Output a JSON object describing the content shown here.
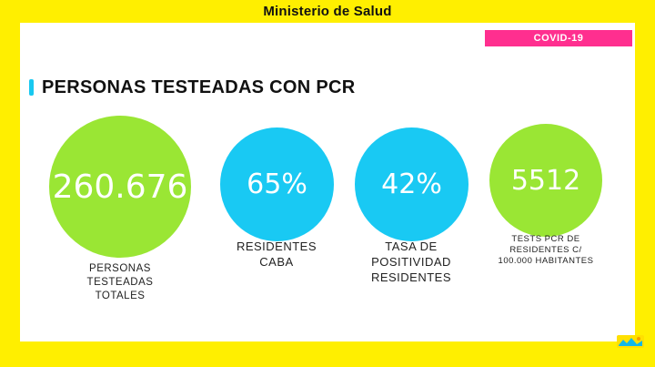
{
  "header": {
    "title": "Ministerio de Salud"
  },
  "tag": {
    "label": "COVID-19"
  },
  "section": {
    "title": "PERSONAS TESTEADAS CON PCR"
  },
  "stats": [
    {
      "value": "260.676",
      "label_lines": [
        "PERSONAS",
        "TESTEADAS",
        "TOTALES"
      ],
      "color": "#9ae634"
    },
    {
      "value": "65%",
      "label_lines": [
        "RESIDENTES",
        "CABA"
      ],
      "color": "#19c9f3"
    },
    {
      "value": "42%",
      "label_lines": [
        "TASA DE",
        "POSITIVIDAD",
        "RESIDENTES"
      ],
      "color": "#19c9f3"
    },
    {
      "value": "5512",
      "label_lines": [
        "TESTS PCR DE",
        "RESIDENTES C/",
        "100.000 HABITANTES"
      ],
      "color": "#9ae634"
    }
  ],
  "colors": {
    "background": "#ffef00",
    "tag": "#ff2f8f",
    "accent": "#18c8f0",
    "green": "#9ae634",
    "cyan": "#19c9f3"
  },
  "logo": {
    "icon": "city-logo-icon"
  }
}
